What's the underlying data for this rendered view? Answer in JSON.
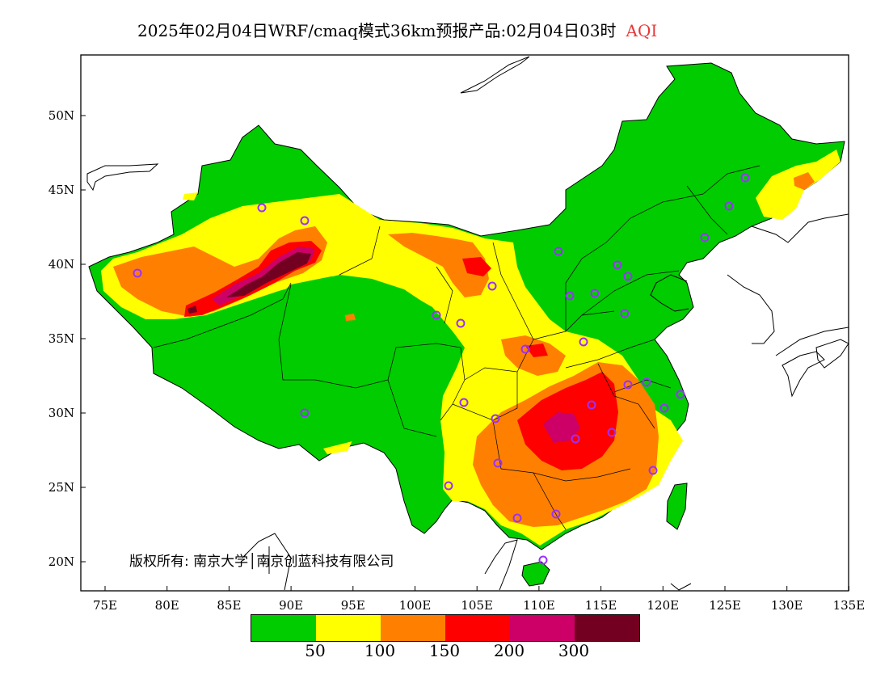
{
  "title": {
    "main": "2025年02月04日WRF/cmaq模式36km预报产品:02月04日03时",
    "variable": "AQI"
  },
  "axes": {
    "lat_labels": [
      "50N",
      "45N",
      "40N",
      "35N",
      "30N",
      "25N",
      "20N"
    ],
    "lon_labels": [
      "75E",
      "80E",
      "85E",
      "90E",
      "95E",
      "100E",
      "105E",
      "110E",
      "115E",
      "120E",
      "125E",
      "130E",
      "135E"
    ]
  },
  "legend": {
    "colors": [
      "#00cc00",
      "#ffff00",
      "#ff8000",
      "#ff0000",
      "#cc0066",
      "#730020"
    ],
    "labels": [
      "50",
      "100",
      "150",
      "200",
      "300"
    ]
  },
  "copyright": "版权所有: 南京大学│南京创蓝科技有限公司"
}
